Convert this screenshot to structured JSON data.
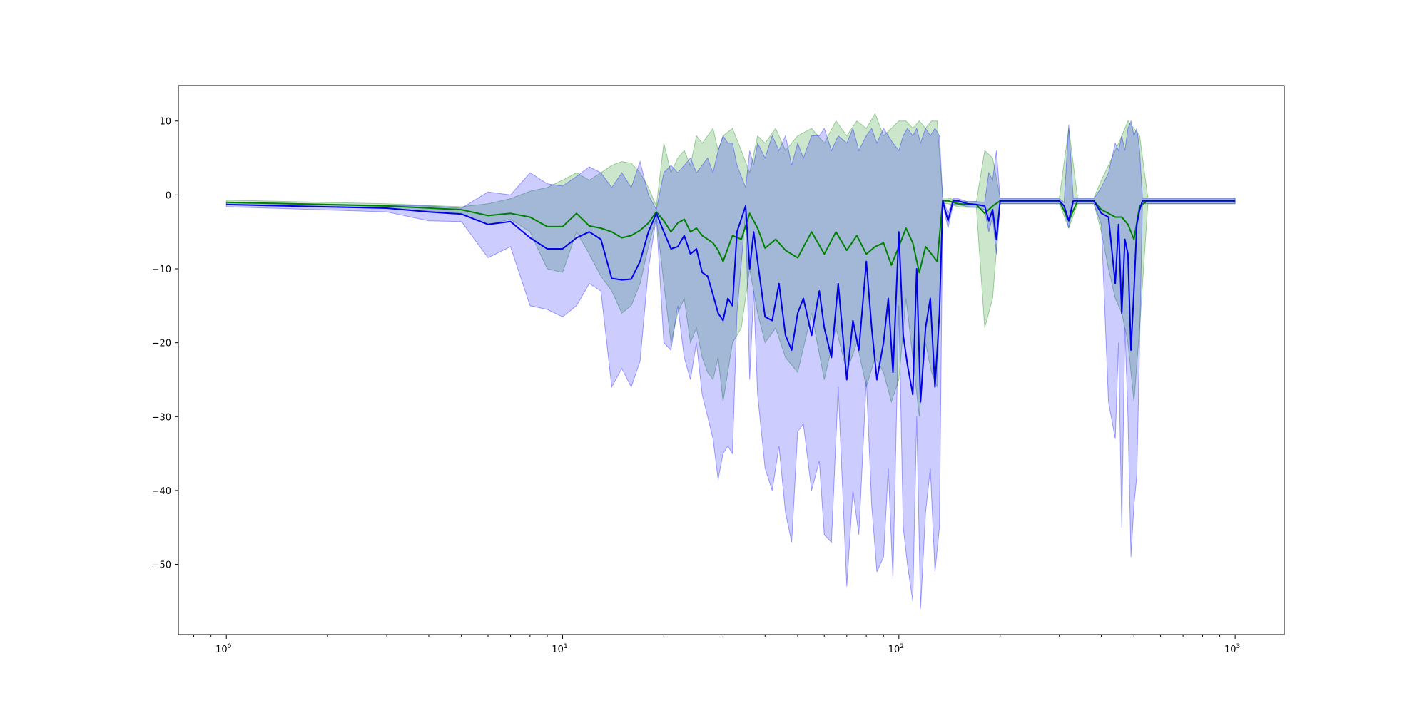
{
  "chart_data": {
    "type": "line",
    "title": "",
    "xlabel": "",
    "ylabel": "",
    "xscale": "log",
    "xlim": [
      0.72,
      1400
    ],
    "ylim": [
      -59.5,
      14.8
    ],
    "grid": false,
    "legend": "none",
    "x_ticks": [
      {
        "value": 1,
        "base": "10",
        "exp": "0"
      },
      {
        "value": 10,
        "base": "10",
        "exp": "1"
      },
      {
        "value": 100,
        "base": "10",
        "exp": "2"
      },
      {
        "value": 1000,
        "base": "10",
        "exp": "3"
      }
    ],
    "y_ticks": [
      {
        "value": 10,
        "label": "10"
      },
      {
        "value": 0,
        "label": "0"
      },
      {
        "value": -10,
        "label": "−10"
      },
      {
        "value": -20,
        "label": "−20"
      },
      {
        "value": -30,
        "label": "−30"
      },
      {
        "value": -40,
        "label": "−40"
      },
      {
        "value": -50,
        "label": "−50"
      }
    ],
    "series": [
      {
        "color": "#008000",
        "band_color": "#008000",
        "band_opacity": 0.2,
        "x": [
          1,
          3,
          5,
          6,
          7,
          8,
          9,
          10,
          11,
          12,
          13,
          14,
          15,
          16,
          17,
          18,
          19,
          20,
          21,
          22,
          23,
          24,
          25,
          26,
          27,
          28,
          29,
          30,
          32,
          34,
          36,
          38,
          40,
          43,
          46,
          50,
          55,
          60,
          65,
          70,
          75,
          80,
          85,
          90,
          95,
          100,
          105,
          110,
          115,
          120,
          125,
          130,
          135,
          140,
          150,
          160,
          170,
          180,
          190,
          200,
          220,
          250,
          280,
          300,
          320,
          340,
          360,
          380,
          400,
          420,
          440,
          460,
          480,
          500,
          520,
          550,
          600,
          700,
          800,
          900,
          1000
        ],
        "y": [
          -1,
          -1.5,
          -2,
          -2.8,
          -2.5,
          -3,
          -4.3,
          -4.3,
          -2.5,
          -4.2,
          -4.5,
          -5,
          -5.8,
          -5.5,
          -4.8,
          -3.8,
          -2.3,
          -3.5,
          -5,
          -3.8,
          -3.3,
          -5,
          -4.5,
          -5.5,
          -6,
          -6.5,
          -7.5,
          -9,
          -5.5,
          -6,
          -2.5,
          -4.5,
          -7.2,
          -6,
          -7.5,
          -8.5,
          -5,
          -8,
          -5,
          -7.5,
          -5.5,
          -8,
          -7,
          -6.5,
          -9.5,
          -7,
          -4.5,
          -6.5,
          -10.5,
          -7,
          -8,
          -9,
          -0.8,
          -0.8,
          -1.2,
          -1.3,
          -1.3,
          -2.5,
          -1.5,
          -0.8,
          -0.8,
          -0.8,
          -0.8,
          -0.8,
          -3.5,
          -0.8,
          -0.8,
          -0.8,
          -2,
          -2.5,
          -3,
          -3,
          -4,
          -6,
          -1.5,
          -0.8,
          -0.8,
          -0.8,
          -0.8,
          -0.8,
          -0.8
        ],
        "lower": [
          -1.3,
          -1.8,
          -2.5,
          -4,
          -3.3,
          -5,
          -10,
          -10.5,
          -5,
          -8,
          -11,
          -13,
          -16,
          -15,
          -12,
          -7,
          -3,
          -12,
          -20,
          -16,
          -14,
          -20,
          -18,
          -22,
          -24,
          -25,
          -22,
          -28,
          -20,
          -18,
          -10,
          -16,
          -20,
          -18,
          -22,
          -24,
          -16,
          -25,
          -18,
          -24,
          -20,
          -26,
          -22,
          -24,
          -28,
          -25,
          -14,
          -22,
          -30,
          -20,
          -24,
          -26,
          -1.2,
          -1.2,
          -1.6,
          -1.7,
          -1.7,
          -18,
          -14,
          -1.2,
          -1.2,
          -1.2,
          -1.2,
          -1.2,
          -4.5,
          -1.2,
          -1.2,
          -1.2,
          -5,
          -10,
          -14,
          -16,
          -20,
          -28,
          -18,
          -1.2,
          -1.2,
          -1.2,
          -1.2,
          -1.2,
          -1.2
        ],
        "upper": [
          -0.7,
          -1.2,
          -1.6,
          -1.2,
          -0.5,
          0.5,
          1,
          2,
          3,
          2,
          3,
          4,
          4.5,
          4.3,
          3,
          1,
          -1.5,
          7,
          3,
          5,
          6,
          4,
          8,
          7,
          8,
          9,
          6,
          8,
          9,
          6,
          3,
          8,
          7,
          9,
          6,
          8,
          9,
          7,
          10,
          8,
          10,
          9,
          11,
          8,
          9,
          10,
          10,
          9,
          10,
          9,
          10,
          10,
          -0.4,
          -0.4,
          -0.8,
          -0.9,
          -0.9,
          6,
          5,
          -0.4,
          -0.4,
          -0.4,
          -0.4,
          -0.4,
          9,
          -0.4,
          -0.4,
          -0.4,
          2,
          4,
          6,
          8,
          10,
          9,
          8,
          -0.4,
          -0.4,
          -0.4,
          -0.4,
          -0.4,
          -0.4
        ]
      },
      {
        "color": "#0000ee",
        "band_color": "#0000ff",
        "band_opacity": 0.2,
        "x": [
          1,
          3,
          4,
          5,
          6,
          7,
          8,
          9,
          10,
          11,
          12,
          13,
          14,
          15,
          16,
          17,
          18,
          19,
          20,
          21,
          22,
          23,
          24,
          25,
          26,
          27,
          28,
          29,
          30,
          31,
          32,
          33,
          35,
          36,
          37,
          38,
          40,
          42,
          44,
          46,
          48,
          50,
          52,
          55,
          58,
          60,
          63,
          66,
          70,
          73,
          76,
          80,
          83,
          86,
          90,
          93,
          96,
          100,
          103,
          106,
          110,
          113,
          116,
          120,
          124,
          128,
          132,
          135,
          140,
          145,
          150,
          160,
          170,
          180,
          185,
          190,
          195,
          200,
          220,
          250,
          280,
          300,
          310,
          320,
          330,
          340,
          360,
          380,
          400,
          420,
          440,
          450,
          460,
          470,
          480,
          490,
          500,
          510,
          520,
          530,
          550,
          600,
          700,
          800,
          900,
          1000
        ],
        "y": [
          -1.3,
          -1.8,
          -2.3,
          -2.6,
          -4,
          -3.6,
          -5.8,
          -7.3,
          -7.3,
          -5.8,
          -5,
          -6,
          -11.3,
          -11.5,
          -11.4,
          -9,
          -5,
          -2.5,
          -5,
          -7.3,
          -7,
          -5.5,
          -8,
          -7.3,
          -10.5,
          -11,
          -13.5,
          -16,
          -17,
          -14,
          -15,
          -5,
          -1.5,
          -10,
          -5,
          -9,
          -16.5,
          -17,
          -12,
          -19,
          -21,
          -16,
          -14,
          -19,
          -13,
          -18,
          -22,
          -12,
          -25,
          -17,
          -21,
          -9,
          -18,
          -25,
          -20,
          -14,
          -24,
          -5,
          -19,
          -23,
          -27,
          -10,
          -28,
          -18,
          -14,
          -26,
          -16,
          -0.8,
          -3.5,
          -0.8,
          -0.8,
          -1.2,
          -1.3,
          -1.5,
          -3.5,
          -2,
          -6,
          -0.8,
          -0.8,
          -0.8,
          -0.8,
          -0.8,
          -1.5,
          -3.5,
          -0.8,
          -0.8,
          -0.8,
          -0.8,
          -2.5,
          -3,
          -12,
          -4,
          -16,
          -6,
          -8,
          -21,
          -13,
          -4,
          -2,
          -0.8,
          -0.8,
          -0.8,
          -0.8,
          -0.8,
          -0.8,
          -0.8
        ],
        "lower": [
          -1.6,
          -2.3,
          -3.5,
          -3.6,
          -8.5,
          -7,
          -15,
          -15.5,
          -16.5,
          -15,
          -12,
          -13,
          -26,
          -23.5,
          -26,
          -22.5,
          -10,
          -3,
          -20,
          -21,
          -15,
          -22,
          -25,
          -20,
          -27,
          -30,
          -33,
          -38.5,
          -35,
          -34,
          -35,
          -16,
          -2.5,
          -25,
          -13,
          -27,
          -37,
          -40,
          -34,
          -43,
          -47,
          -32,
          -31,
          -40,
          -36,
          -46,
          -47,
          -26,
          -53,
          -40,
          -46,
          -25,
          -42,
          -51,
          -49,
          -37,
          -52,
          -15,
          -45,
          -50,
          -55,
          -30,
          -56,
          -43,
          -37,
          -51,
          -45,
          -1.3,
          -4.5,
          -1.3,
          -1.3,
          -1.6,
          -1.7,
          -2,
          -5,
          -3,
          -8,
          -1.2,
          -1.2,
          -1.2,
          -1.2,
          -1.2,
          -2,
          -4.5,
          -1.2,
          -1.2,
          -1.2,
          -1.2,
          -4,
          -28,
          -33,
          -20,
          -45,
          -18,
          -30,
          -49,
          -42,
          -38,
          -20,
          -1.2,
          -1.2,
          -1.2,
          -1.2,
          -1.2,
          -1.2,
          -1.2
        ],
        "upper": [
          -1,
          -1.4,
          -1.5,
          -1.8,
          0.4,
          0,
          3,
          1.5,
          1.2,
          2.5,
          3.8,
          3,
          1,
          3,
          1,
          4.5,
          0,
          -2,
          3,
          4,
          3,
          4,
          5,
          3,
          4,
          5,
          3,
          6,
          8,
          7,
          7,
          4,
          1,
          6,
          4,
          7,
          5,
          8,
          6,
          8,
          4,
          7,
          5,
          8,
          8,
          9,
          6,
          8,
          7,
          9,
          6,
          8,
          9,
          7,
          9,
          8,
          7,
          6,
          8,
          9,
          8,
          9,
          7,
          9,
          8,
          9,
          8,
          -0.5,
          -2.5,
          -0.5,
          -0.5,
          -0.9,
          -0.9,
          -1,
          3,
          2,
          6,
          -0.5,
          -0.5,
          -0.5,
          -0.5,
          -0.5,
          -1,
          9.5,
          -0.5,
          -0.5,
          -0.5,
          -0.5,
          1,
          3,
          7,
          6,
          8,
          6,
          9,
          10,
          8,
          9,
          6,
          -0.5,
          -0.5,
          -0.5,
          -0.5,
          -0.5,
          -0.5,
          -0.5
        ]
      }
    ]
  }
}
